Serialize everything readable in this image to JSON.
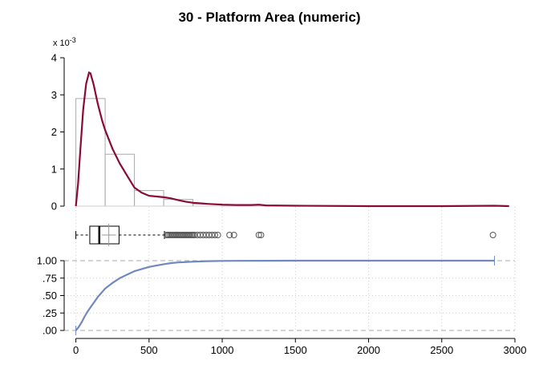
{
  "title": "30 - Platform Area (numeric)",
  "density_multiplier_label": "x 10",
  "density_multiplier_exp": "-3",
  "chart_data": [
    {
      "type": "histogram",
      "panel": "density",
      "bins": [
        {
          "from": 0,
          "to": 200,
          "density": 2.9
        },
        {
          "from": 200,
          "to": 400,
          "density": 1.4
        },
        {
          "from": 400,
          "to": 600,
          "density": 0.42
        },
        {
          "from": 600,
          "to": 800,
          "density": 0.18
        },
        {
          "from": 800,
          "to": 1000,
          "density": 0.06
        },
        {
          "from": 1000,
          "to": 1200,
          "density": 0.02
        },
        {
          "from": 1200,
          "to": 1400,
          "density": 0.01
        },
        {
          "from": 1400,
          "to": 2900,
          "density": 0.0
        }
      ],
      "density_curve": {
        "x": [
          0,
          15,
          30,
          50,
          70,
          90,
          100,
          120,
          150,
          180,
          200,
          250,
          300,
          350,
          400,
          450,
          500,
          550,
          600,
          650,
          700,
          750,
          800,
          900,
          1000,
          1100,
          1200,
          1250,
          1300,
          1500,
          2000,
          2500,
          2860,
          2960
        ],
        "y": [
          0.0,
          0.6,
          1.5,
          2.6,
          3.3,
          3.6,
          3.58,
          3.3,
          2.75,
          2.3,
          2.05,
          1.55,
          1.15,
          0.82,
          0.5,
          0.36,
          0.28,
          0.26,
          0.24,
          0.21,
          0.16,
          0.12,
          0.09,
          0.06,
          0.04,
          0.03,
          0.03,
          0.04,
          0.02,
          0.01,
          0.0,
          0.0,
          0.01,
          0.0
        ]
      },
      "y_ticks": [
        0,
        1,
        2,
        3,
        4
      ],
      "ylim": [
        0,
        4
      ],
      "xlim": [
        -80,
        3000
      ],
      "colors": {
        "bars": "#aaaaaa",
        "curve": "#8b0a32"
      }
    },
    {
      "type": "boxplot",
      "panel": "box",
      "min": 0,
      "q1": 95,
      "median": 160,
      "mean": 225,
      "q3": 295,
      "whisker_high": 605,
      "outliers": [
        620,
        630,
        640,
        650,
        660,
        670,
        680,
        690,
        700,
        710,
        720,
        730,
        740,
        750,
        760,
        770,
        780,
        790,
        800,
        810,
        830,
        850,
        870,
        890,
        910,
        930,
        950,
        970,
        1050,
        1080,
        1250,
        1265,
        2850
      ],
      "colors": {
        "box": "#000000",
        "mean": "#999999",
        "outlier": "#555555"
      }
    },
    {
      "type": "line",
      "panel": "ecdf",
      "x": [
        0,
        20,
        40,
        60,
        80,
        100,
        150,
        200,
        250,
        300,
        350,
        400,
        450,
        500,
        550,
        600,
        650,
        700,
        800,
        900,
        1000,
        1100,
        1300,
        1500,
        2000,
        2500,
        2860
      ],
      "y": [
        0.0,
        0.05,
        0.12,
        0.2,
        0.27,
        0.33,
        0.48,
        0.6,
        0.68,
        0.75,
        0.8,
        0.85,
        0.88,
        0.91,
        0.93,
        0.95,
        0.965,
        0.975,
        0.985,
        0.993,
        0.997,
        0.998,
        0.999,
        1.0,
        1.0,
        1.0,
        1.0
      ],
      "y_ticks": [
        ".00",
        ".25",
        ".50",
        ".75",
        "1.00"
      ],
      "x_ticks": [
        0,
        500,
        1000,
        1500,
        2000,
        2500,
        3000
      ],
      "xlim": [
        -80,
        3000
      ],
      "ylim": [
        0,
        1
      ],
      "colors": {
        "curve": "#6f88bf",
        "ref_lines": "#aaaaaa"
      }
    }
  ]
}
